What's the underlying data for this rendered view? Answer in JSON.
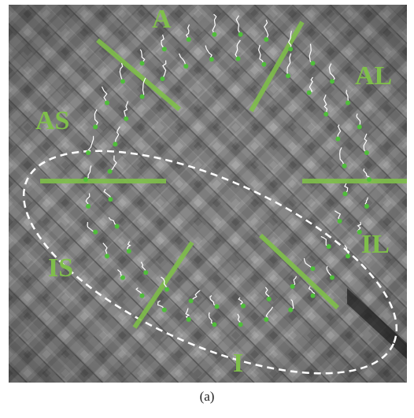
{
  "colors": {
    "background_gray": "#7d7d7d",
    "segment_green": "#7fbf4a",
    "track_white": "#ffffff",
    "point_green": "#4fbf3a",
    "ellipse_white": "#ffffff"
  },
  "figure": {
    "segment_labels": {
      "anterior": "A",
      "anterolateral": "AL",
      "anteroseptal": "AS",
      "inferoseptal": "IS",
      "inferolateral": "IL",
      "inferior": "I"
    },
    "caption": "(a)"
  }
}
